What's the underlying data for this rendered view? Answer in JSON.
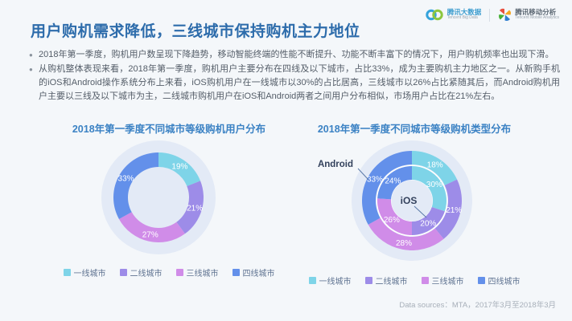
{
  "header": {
    "title": "用户购机需求降低，三线城市保持购机主力地位",
    "logo1": {
      "zh": "腾讯大数据",
      "en": "Tencent Big Data"
    },
    "logo2": {
      "zh": "腾讯移动分析",
      "en": "Tencent Mobile Analytics"
    }
  },
  "bullets": [
    "2018年第一季度，购机用户数呈现下降趋势，移动智能终端的性能不断提升、功能不断丰富下的情况下，用户购机频率也出现下滑。",
    "从购机整体表现来看，2018年第一季度，购机用户主要分布在四线及以下城市，占比33%，成为主要购机主力地区之一。从新购手机的iOS和Android操作系统分布上来看，iOS购机用户在一线城市以30%的占比居高，三线城市以26%占比紧随其后，而Android购机用户主要以三线及以下城市为主，二线城市购机用户在iOS和Android两者之间用户分布相似，市场用户占比在21%左右。"
  ],
  "colors": {
    "tier1": "#7ed4e8",
    "tier2": "#9d8ce8",
    "tier3": "#d08ce8",
    "tier4": "#6390ea",
    "halo": "#e3eaf6",
    "annotation_line": "#5b7aa8",
    "annotation_text": "#33415c",
    "slice_label": "#ffffff"
  },
  "chart_data": [
    {
      "type": "pie",
      "subtype": "donut",
      "title": "2018年第一季度不同城市等级购机用户分布",
      "categories": [
        "一线城市",
        "二线城市",
        "三线城市",
        "四线城市"
      ],
      "values": [
        19,
        21,
        27,
        33
      ],
      "unit": "%",
      "colors": [
        "#7ed4e8",
        "#9d8ce8",
        "#d08ce8",
        "#6390ea"
      ],
      "legend_position": "bottom",
      "start_angle": "12-oclock-clockwise"
    },
    {
      "type": "pie",
      "subtype": "nested-donut",
      "title": "2018年第一季度不同城市等级购机类型分布",
      "categories": [
        "一线城市",
        "二线城市",
        "三线城市",
        "四线城市"
      ],
      "series": [
        {
          "name": "Android",
          "ring": "outer",
          "values": [
            18,
            21,
            28,
            33
          ]
        },
        {
          "name": "iOS",
          "ring": "inner",
          "values": [
            30,
            20,
            26,
            24
          ]
        }
      ],
      "unit": "%",
      "colors": [
        "#7ed4e8",
        "#9d8ce8",
        "#d08ce8",
        "#6390ea"
      ],
      "annotations": {
        "outer": "Android",
        "inner": "iOS"
      },
      "legend_position": "bottom",
      "start_angle": "12-oclock-clockwise"
    }
  ],
  "footer": {
    "text": "Data sources：MTA，2017年3月至2018年3月"
  }
}
